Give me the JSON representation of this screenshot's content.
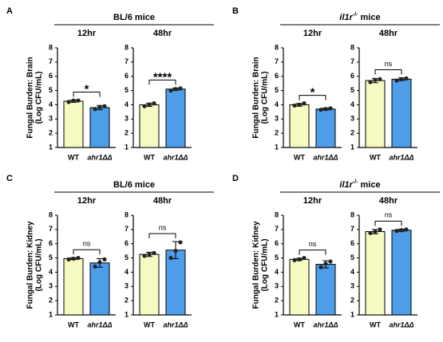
{
  "chart_data": [
    {
      "type": "bar",
      "panel_label": "A",
      "group_title": "BL/6 mice",
      "ylabel": [
        "Fungal Burden: Brain",
        "(Log CFU/mL)"
      ],
      "title": "12hr",
      "categories": [
        "WT",
        "ahr1ΔΔ"
      ],
      "values": [
        4.25,
        3.8
      ],
      "errors": [
        0.08,
        0.15
      ],
      "points": [
        [
          4.2,
          4.3,
          4.3
        ],
        [
          3.7,
          3.85,
          3.9
        ]
      ],
      "colors": [
        "#f6fac0",
        "#4d9de8"
      ],
      "ylim": [
        1,
        8
      ],
      "yticks": [
        1,
        2,
        3,
        4,
        5,
        6,
        7,
        8
      ],
      "annotation": "*"
    },
    {
      "type": "bar",
      "title": "48hr",
      "categories": [
        "WT",
        "ahr1ΔΔ"
      ],
      "values": [
        4.0,
        5.1
      ],
      "errors": [
        0.12,
        0.08
      ],
      "points": [
        [
          3.9,
          4.0,
          4.1
        ],
        [
          5.0,
          5.1,
          5.15
        ]
      ],
      "colors": [
        "#f6fac0",
        "#4d9de8"
      ],
      "ylim": [
        1,
        8
      ],
      "yticks": [
        1,
        2,
        3,
        4,
        5,
        6,
        7,
        8
      ],
      "annotation": "****"
    },
    {
      "type": "bar",
      "panel_label": "B",
      "group_title": {
        "gene": "il1r",
        "genotype": "-/-",
        "suffix": "mice"
      },
      "ylabel": [
        "Fungal Burden: Brain",
        "(Log CFU/mL)"
      ],
      "title": "12hr",
      "categories": [
        "WT",
        "ahr1ΔΔ"
      ],
      "values": [
        4.0,
        3.7
      ],
      "errors": [
        0.1,
        0.08
      ],
      "points": [
        [
          3.95,
          4.0,
          4.1
        ],
        [
          3.65,
          3.7,
          3.75
        ]
      ],
      "colors": [
        "#f6fac0",
        "#4d9de8"
      ],
      "ylim": [
        1,
        8
      ],
      "yticks": [
        1,
        2,
        3,
        4,
        5,
        6,
        7,
        8
      ],
      "annotation": "*"
    },
    {
      "type": "bar",
      "title": "48hr",
      "categories": [
        "WT",
        "ahr1ΔΔ"
      ],
      "values": [
        5.7,
        5.8
      ],
      "errors": [
        0.15,
        0.1
      ],
      "points": [
        [
          5.6,
          5.75,
          5.8
        ],
        [
          5.7,
          5.8,
          5.85
        ]
      ],
      "colors": [
        "#f6fac0",
        "#4d9de8"
      ],
      "ylim": [
        1,
        8
      ],
      "yticks": [
        1,
        2,
        3,
        4,
        5,
        6,
        7,
        8
      ],
      "annotation": "ns"
    },
    {
      "type": "bar",
      "panel_label": "C",
      "group_title": "BL/6 mice",
      "ylabel": [
        "Fungal Burden: Kidney",
        "(Log CFU/mL)"
      ],
      "title": "12hr",
      "categories": [
        "WT",
        "ahr1ΔΔ"
      ],
      "values": [
        4.95,
        4.65
      ],
      "errors": [
        0.07,
        0.3
      ],
      "points": [
        [
          4.9,
          4.95,
          5.0
        ],
        [
          4.4,
          4.7,
          4.9
        ]
      ],
      "colors": [
        "#f6fac0",
        "#4d9de8"
      ],
      "ylim": [
        1,
        8
      ],
      "yticks": [
        1,
        2,
        3,
        4,
        5,
        6,
        7,
        8
      ],
      "annotation": "ns"
    },
    {
      "type": "bar",
      "title": "48hr",
      "categories": [
        "WT",
        "ahr1ΔΔ"
      ],
      "values": [
        5.25,
        5.55
      ],
      "errors": [
        0.15,
        0.6
      ],
      "points": [
        [
          5.15,
          5.25,
          5.35
        ],
        [
          5.0,
          5.5,
          6.1
        ]
      ],
      "colors": [
        "#f6fac0",
        "#4d9de8"
      ],
      "ylim": [
        1,
        8
      ],
      "yticks": [
        1,
        2,
        3,
        4,
        5,
        6,
        7,
        8
      ],
      "annotation": "ns"
    },
    {
      "type": "bar",
      "panel_label": "D",
      "group_title": {
        "gene": "il1r",
        "genotype": "-/-",
        "suffix": "mice"
      },
      "ylabel": [
        "Fungal Burden: Kidney",
        "(Log CFU/mL)"
      ],
      "title": "12hr",
      "categories": [
        "WT",
        "ahr1ΔΔ"
      ],
      "values": [
        4.9,
        4.55
      ],
      "errors": [
        0.08,
        0.25
      ],
      "points": [
        [
          4.85,
          4.9,
          5.0
        ],
        [
          4.35,
          4.6,
          4.75
        ]
      ],
      "colors": [
        "#f6fac0",
        "#4d9de8"
      ],
      "ylim": [
        1,
        8
      ],
      "yticks": [
        1,
        2,
        3,
        4,
        5,
        6,
        7,
        8
      ],
      "annotation": "ns"
    },
    {
      "type": "bar",
      "title": "48hr",
      "categories": [
        "WT",
        "ahr1ΔΔ"
      ],
      "values": [
        6.85,
        6.95
      ],
      "errors": [
        0.15,
        0.08
      ],
      "points": [
        [
          6.75,
          6.85,
          7.0
        ],
        [
          6.9,
          6.95,
          7.0
        ]
      ],
      "colors": [
        "#f6fac0",
        "#4d9de8"
      ],
      "ylim": [
        1,
        8
      ],
      "yticks": [
        1,
        2,
        3,
        4,
        5,
        6,
        7,
        8
      ],
      "annotation": "ns"
    }
  ]
}
